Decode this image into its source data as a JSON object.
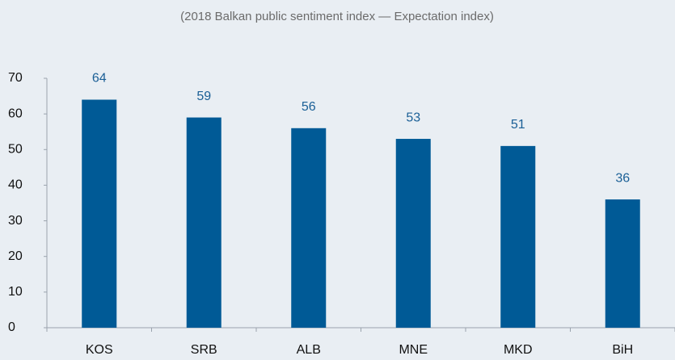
{
  "chart_data": {
    "type": "bar",
    "title": "(2018 Balkan public sentiment index — Expectation index)",
    "categories": [
      "KOS",
      "SRB",
      "ALB",
      "MNE",
      "MKD",
      "BiH"
    ],
    "values": [
      64,
      59,
      56,
      53,
      51,
      36
    ],
    "color": "#005a96",
    "ylim": [
      0,
      70
    ],
    "yticks": [
      0,
      10,
      20,
      30,
      40,
      50,
      60,
      70
    ],
    "grid": false
  }
}
